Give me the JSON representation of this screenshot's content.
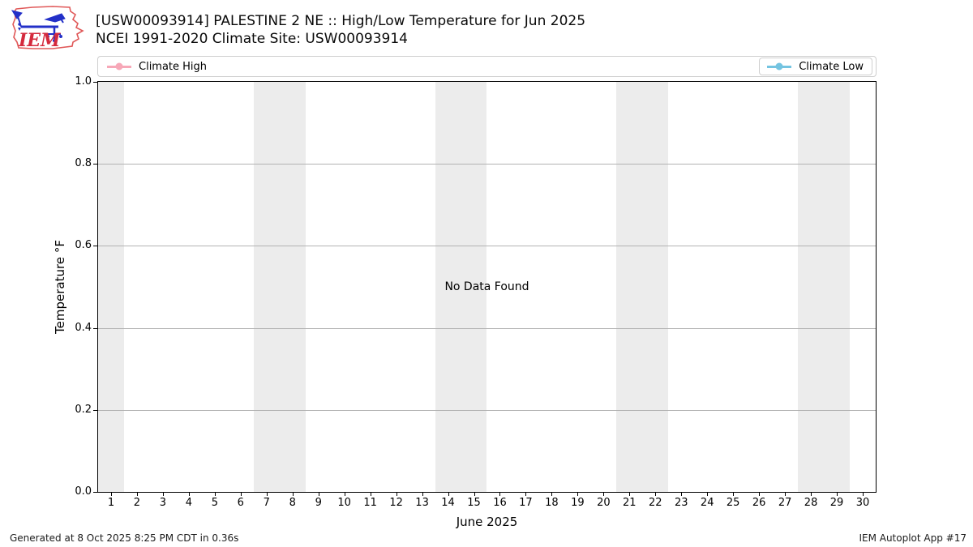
{
  "header": {
    "title_line1": "[USW00093914] PALESTINE 2 NE :: High/Low Temperature for Jun 2025",
    "title_line2": "NCEI 1991-2020 Climate Site: USW00093914",
    "logo_text": "IEM"
  },
  "legend": {
    "high_label": "Climate High",
    "low_label": "Climate Low",
    "high_color": "#f7a8b8",
    "low_color": "#74c4e1"
  },
  "chart_data": {
    "type": "line",
    "title": "[USW00093914] PALESTINE 2 NE :: High/Low Temperature for Jun 2025",
    "subtitle": "NCEI 1991-2020 Climate Site: USW00093914",
    "xlabel": "June 2025",
    "ylabel": "Temperature °F",
    "no_data_text": "No Data Found",
    "xlim": [
      0.5,
      30.5
    ],
    "ylim": [
      0.0,
      1.0
    ],
    "xticks": [
      1,
      2,
      3,
      4,
      5,
      6,
      7,
      8,
      9,
      10,
      11,
      12,
      13,
      14,
      15,
      16,
      17,
      18,
      19,
      20,
      21,
      22,
      23,
      24,
      25,
      26,
      27,
      28,
      29,
      30
    ],
    "yticks": [
      0.0,
      0.2,
      0.4,
      0.6,
      0.8,
      1.0
    ],
    "ytick_labels": [
      "0.0",
      "0.2",
      "0.4",
      "0.6",
      "0.8",
      "1.0"
    ],
    "grid": "horizontal gridlines on, legend top inside frame",
    "series": [
      {
        "name": "Climate High",
        "color": "#f7a8b8",
        "x": [],
        "values": []
      },
      {
        "name": "Climate Low",
        "color": "#74c4e1",
        "x": [],
        "values": []
      }
    ],
    "weekend_bands": [
      [
        0.5,
        1.5
      ],
      [
        6.5,
        8.5
      ],
      [
        13.5,
        15.5
      ],
      [
        20.5,
        22.5
      ],
      [
        27.5,
        29.5
      ]
    ],
    "colors": {
      "band": "#ececec",
      "gridline": "#b2b2b2",
      "spine": "#000000"
    }
  },
  "footer": {
    "generated": "Generated at 8 Oct 2025 8:25 PM CDT in 0.36s",
    "app": "IEM Autoplot App #17"
  }
}
